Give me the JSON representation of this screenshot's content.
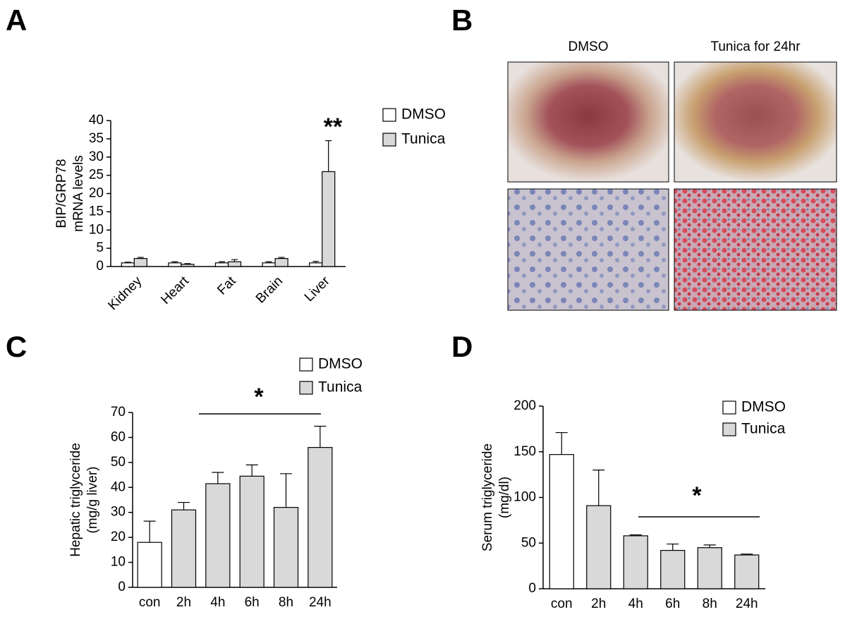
{
  "chart_data": [
    {
      "type": "bar",
      "panel": "A",
      "y_label": [
        "BIP/GRP78",
        "mRNA levels"
      ],
      "categories": [
        "Kidney",
        "Heart",
        "Fat",
        "Brain",
        "Liver"
      ],
      "series": [
        {
          "name": "DMSO",
          "color": "#ffffff",
          "values": [
            1,
            1,
            1,
            1,
            1
          ],
          "errors": [
            0.2,
            0.3,
            0.3,
            0.3,
            0.4
          ]
        },
        {
          "name": "Tunica",
          "color": "#d9d9d9",
          "values": [
            2.2,
            0.6,
            1.3,
            2.2,
            26
          ],
          "errors": [
            0.3,
            0.2,
            0.6,
            0.3,
            8.5
          ]
        }
      ],
      "ylim": [
        0,
        40
      ],
      "yticks": [
        0,
        5,
        10,
        15,
        20,
        25,
        30,
        35,
        40
      ],
      "annotation": "**"
    },
    {
      "type": "bar",
      "panel": "C",
      "y_label": [
        "Hepatic triglyceride",
        "(mg/g liver)"
      ],
      "categories": [
        "con",
        "2h",
        "4h",
        "6h",
        "8h",
        "24h"
      ],
      "series": [
        {
          "name": "DMSO",
          "color": "#ffffff",
          "values": [
            18,
            null,
            null,
            null,
            null,
            null
          ],
          "errors": [
            8.5,
            null,
            null,
            null,
            null,
            null
          ]
        },
        {
          "name": "Tunica",
          "color": "#d9d9d9",
          "values": [
            null,
            31,
            41.5,
            44.5,
            32,
            56
          ],
          "errors": [
            null,
            3,
            4.5,
            4.5,
            13.5,
            8.5
          ]
        }
      ],
      "ylim": [
        0,
        70
      ],
      "yticks": [
        0,
        10,
        20,
        30,
        40,
        50,
        60,
        70
      ],
      "annotation": "*"
    },
    {
      "type": "bar",
      "panel": "D",
      "y_label": [
        "Serum triglyceride",
        "(mg/dl)"
      ],
      "categories": [
        "con",
        "2h",
        "4h",
        "6h",
        "8h",
        "24h"
      ],
      "series": [
        {
          "name": "DMSO",
          "color": "#ffffff",
          "values": [
            147,
            null,
            null,
            null,
            null,
            null
          ],
          "errors": [
            24,
            null,
            null,
            null,
            null,
            null
          ]
        },
        {
          "name": "Tunica",
          "color": "#d9d9d9",
          "values": [
            null,
            91,
            58,
            42,
            45,
            37
          ],
          "errors": [
            null,
            39,
            1,
            7,
            3,
            1
          ]
        }
      ],
      "ylim": [
        0,
        200
      ],
      "yticks": [
        0,
        50,
        100,
        150,
        200
      ],
      "annotation": "*"
    }
  ],
  "images": {
    "panel": "B",
    "columns": [
      "DMSO",
      "Tunica for 24hr"
    ]
  }
}
